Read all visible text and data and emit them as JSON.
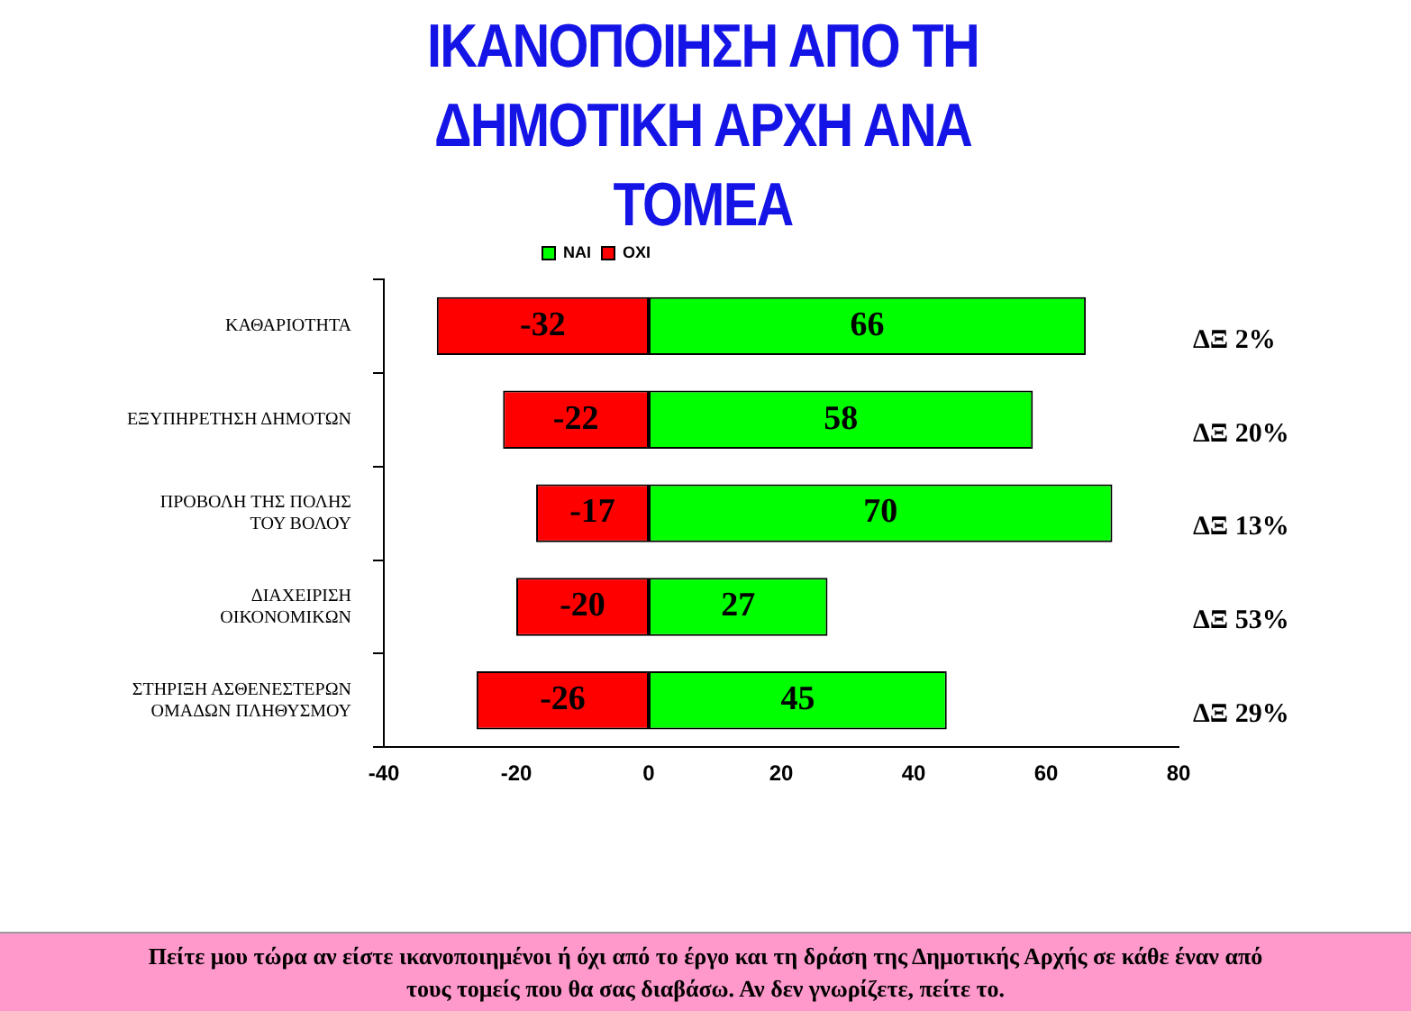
{
  "chart_data": {
    "type": "bar",
    "orientation": "horizontal",
    "stacked": true,
    "title": "ΙΚΑΝΟΠΟΙΗΣΗ ΑΠΟ ΤΗ ΔΗΜΟΤΙΚΗ ΑΡΧΗ ΑΝΑ ΤΟΜΕΑ",
    "categories": [
      "ΚΑΘΑΡΙΟΤΗΤΑ",
      "ΕΞΥΠΗΡΕΤΗΣΗ ΔΗΜΟΤΩΝ",
      "ΠΡΟΒΟΛΗ ΤΗΣ ΠΟΛΗΣ ΤΟΥ ΒΟΛΟΥ",
      "ΔΙΑΧΕΙΡΙΣΗ ΟΙΚΟΝΟΜΙΚΩΝ",
      "ΣΤΗΡΙΞΗ ΑΣΘΕΝΕΣΤΕΡΩΝ ΟΜΑΔΩΝ ΠΛΗΘΥΣΜΟΥ"
    ],
    "series": [
      {
        "name": "ΝΑΙ",
        "color": "#00ff00",
        "values": [
          66,
          58,
          70,
          27,
          45
        ]
      },
      {
        "name": "ΟΧΙ",
        "color": "#ff0000",
        "values": [
          -32,
          -22,
          -17,
          -20,
          -26
        ]
      }
    ],
    "xlim": [
      -40,
      80
    ],
    "xticks": [
      -40,
      -20,
      0,
      20,
      40,
      60,
      80
    ],
    "data_labels": true,
    "legend": "top",
    "grid": false,
    "annotations": [
      "ΔΞ 2%",
      "ΔΞ 20%",
      "ΔΞ 13%",
      "ΔΞ 53%",
      "ΔΞ 29%",
      "Πείτε μου τώρα αν είστε ικανοποιημένοι ή όχι από το έργο και τη δράση της Δημοτικής Αρχής σε κάθε έναν από τους τομείς που θα σας διαβάσω. Αν δεν γνωρίζετε,  πείτε το."
    ]
  }
}
